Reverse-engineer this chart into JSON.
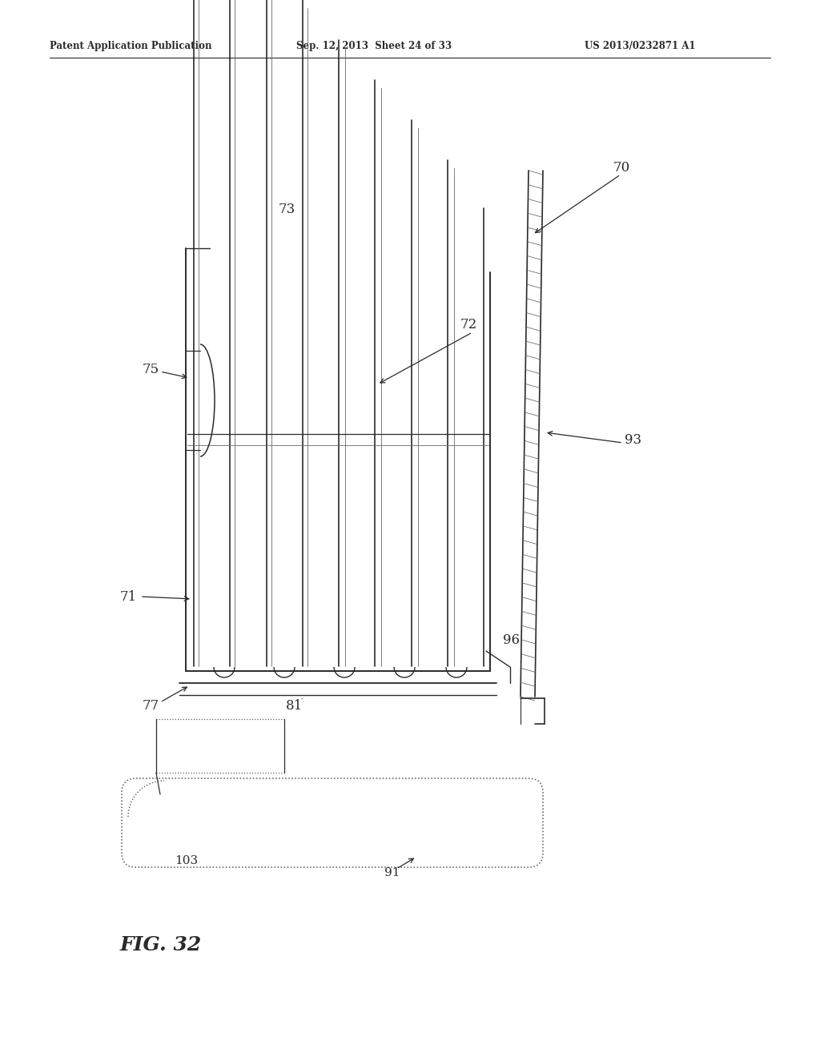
{
  "header_left": "Patent Application Publication",
  "header_mid": "Sep. 12, 2013  Sheet 24 of 33",
  "header_right": "US 2013/0232871 A1",
  "fig_label": "FIG. 32",
  "bg_color": "#ffffff",
  "lc": "#2a2a2a",
  "gray": "#888888",
  "light_gray": "#bbbbbb"
}
